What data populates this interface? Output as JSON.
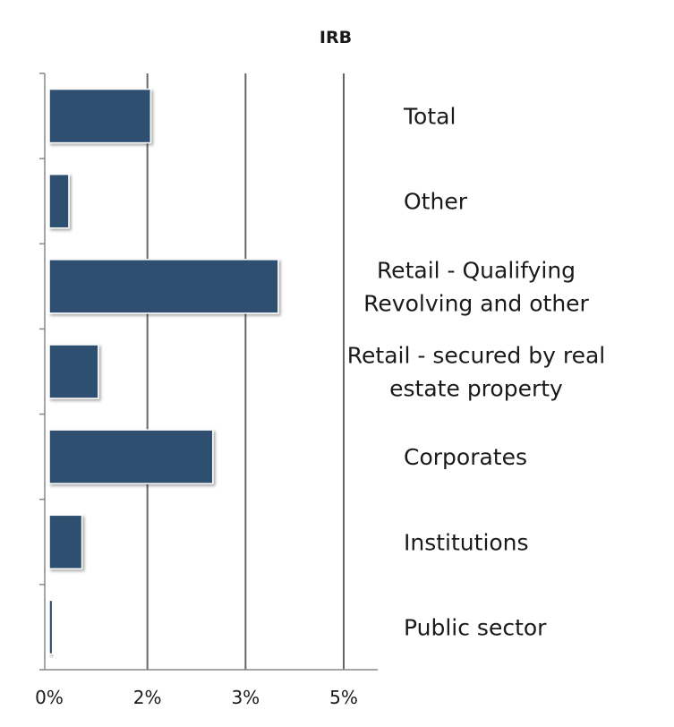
{
  "chart_data": {
    "type": "bar",
    "orientation": "horizontal",
    "title": "IRB",
    "categories": [
      "Total",
      "Other",
      "Retail - Qualifying Revolving and other",
      "Retail - secured by real estate property",
      "Corporates",
      "Institutions",
      "Public sector"
    ],
    "category_lines": [
      [
        "Total"
      ],
      [
        "Other"
      ],
      [
        "Retail - Qualifying",
        "Revolving and other"
      ],
      [
        "Retail - secured by real",
        "estate property"
      ],
      [
        "Corporates"
      ],
      [
        "Institutions"
      ],
      [
        "Public sector"
      ]
    ],
    "values": [
      1.55,
      0.3,
      3.5,
      0.75,
      2.5,
      0.5,
      0.05
    ],
    "xlim": [
      0,
      4.5
    ],
    "xticks": [
      0,
      1.5,
      3.0,
      4.5
    ],
    "xtick_labels": [
      "0%",
      "2%",
      "3%",
      "5%"
    ],
    "xlabel": "",
    "ylabel": "",
    "grid": true,
    "legend": "none",
    "bar_color": "#2d5070",
    "grid_color": "#666666"
  }
}
